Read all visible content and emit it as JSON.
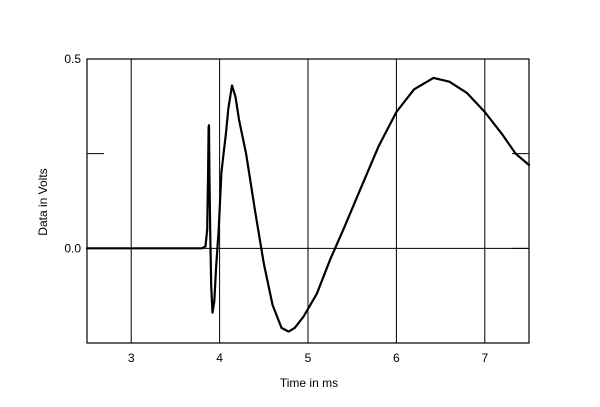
{
  "chart_data": {
    "type": "line",
    "title": "",
    "xlabel": "Time in ms",
    "ylabel": "Data in Volts",
    "xlim": [
      2.5,
      7.5
    ],
    "ylim": [
      -0.25,
      0.5
    ],
    "x_ticks": [
      3,
      4,
      5,
      6,
      7
    ],
    "x_tick_labels": [
      "3",
      "4",
      "5",
      "6",
      "7"
    ],
    "y_ticks": [
      0.0,
      0.25,
      0.5
    ],
    "y_tick_labels": [
      "0.0",
      "",
      "0.5"
    ],
    "grid": "vertical",
    "series": [
      {
        "color": "#000000",
        "points": [
          [
            2.5,
            0.0
          ],
          [
            3.0,
            0.0
          ],
          [
            3.5,
            0.0
          ],
          [
            3.8,
            0.0
          ],
          [
            3.84,
            0.005
          ],
          [
            3.86,
            0.05
          ],
          [
            3.87,
            0.2
          ],
          [
            3.875,
            0.32
          ],
          [
            3.88,
            0.325
          ],
          [
            3.885,
            0.2
          ],
          [
            3.895,
            0.03
          ],
          [
            3.905,
            -0.1
          ],
          [
            3.92,
            -0.17
          ],
          [
            3.94,
            -0.14
          ],
          [
            3.96,
            -0.05
          ],
          [
            3.99,
            0.05
          ],
          [
            4.02,
            0.2
          ],
          [
            4.05,
            0.26
          ],
          [
            4.07,
            0.3
          ],
          [
            4.1,
            0.37
          ],
          [
            4.14,
            0.43
          ],
          [
            4.18,
            0.4
          ],
          [
            4.22,
            0.34
          ],
          [
            4.3,
            0.25
          ],
          [
            4.4,
            0.1
          ],
          [
            4.5,
            -0.04
          ],
          [
            4.6,
            -0.15
          ],
          [
            4.7,
            -0.21
          ],
          [
            4.78,
            -0.22
          ],
          [
            4.85,
            -0.21
          ],
          [
            4.95,
            -0.18
          ],
          [
            5.1,
            -0.12
          ],
          [
            5.25,
            -0.03
          ],
          [
            5.4,
            0.05
          ],
          [
            5.6,
            0.16
          ],
          [
            5.8,
            0.27
          ],
          [
            6.0,
            0.36
          ],
          [
            6.2,
            0.42
          ],
          [
            6.42,
            0.45
          ],
          [
            6.6,
            0.44
          ],
          [
            6.8,
            0.41
          ],
          [
            7.0,
            0.36
          ],
          [
            7.2,
            0.3
          ],
          [
            7.35,
            0.25
          ],
          [
            7.5,
            0.22
          ]
        ]
      }
    ]
  }
}
